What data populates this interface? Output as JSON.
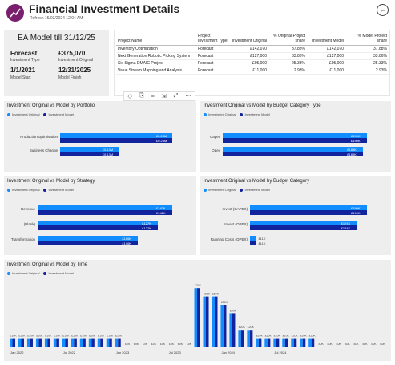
{
  "header": {
    "title": "Financial Investment Details",
    "refresh": "Refresh 15/03/2024 12:04 AM"
  },
  "colors": {
    "original": "#118dff",
    "model": "#12239e",
    "panel": "#eeeeee",
    "brand": "#7a1f6d"
  },
  "kpi": {
    "title": "EA Model till 31/12/25",
    "forecast_value": "Forecast",
    "forecast_label": "Investment Type",
    "original_value": "£375,070",
    "original_label": "Investment Original",
    "start_value": "1/1/2021",
    "start_label": "Model Start",
    "finish_value": "12/31/2025",
    "finish_label": "Model Finish"
  },
  "table": {
    "headers": [
      "Project Name",
      "Project Investment Type",
      "Investment Original",
      "% Original Project share",
      "Investment Model",
      "% Model Project share"
    ],
    "rows": [
      [
        "Inventory Optimization",
        "Forecast",
        "£142,070",
        "37.88%",
        "£142,070",
        "37.88%"
      ],
      [
        "Next Generation Robotic Picking System",
        "Forecast",
        "£127,000",
        "33.86%",
        "£127,000",
        "33.86%"
      ],
      [
        "Six Sigma DMAIC Project",
        "Forecast",
        "£95,000",
        "25.33%",
        "£95,000",
        "25.33%"
      ],
      [
        "Value Stream Mapping and Analysis",
        "Forecast",
        "£11,000",
        "2.93%",
        "£11,000",
        "2.93%"
      ]
    ],
    "toolbar": [
      "◇",
      "⎘",
      "≡",
      "⇲",
      "⤢",
      "⋯"
    ]
  },
  "legend": {
    "original": "Investment Original",
    "model": "Investment Model"
  },
  "charts": {
    "portfolio": {
      "title": "Investment Original vs Model by Portfolio",
      "categories": [
        "Production optimisation",
        "Business Change"
      ],
      "original": [
        0.25,
        0.13
      ],
      "model": [
        0.25,
        0.13
      ],
      "original_labels": [
        "£0.25M",
        "£0.13M"
      ],
      "model_labels": [
        "£0.25M",
        "£0.13M"
      ],
      "max": 0.25
    },
    "budget_type": {
      "title": "Investment Original vs Model by Budget Category Type",
      "categories": [
        "Capex",
        "Opex"
      ],
      "original": [
        190,
        185
      ],
      "model": [
        190,
        185
      ],
      "original_labels": [
        "£190K",
        "£185K"
      ],
      "model_labels": [
        "£190K",
        "£185K"
      ],
      "max": 190
    },
    "strategy": {
      "title": "Investment Original vs Model by Strategy",
      "categories": [
        "Revenue",
        "(Blank)",
        "Transformation"
      ],
      "original": [
        142,
        127,
        106
      ],
      "model": [
        142,
        127,
        106
      ],
      "original_labels": [
        "£142K",
        "£127K",
        "£106K"
      ],
      "model_labels": [
        "£142K",
        "£127K",
        "£106K"
      ],
      "max": 142
    },
    "budget_category": {
      "title": "Investment Original vs Model by Budget Category",
      "categories": [
        "Invest (CAPEX)",
        "Invest (OPEX)",
        "Running Costs (OPEX)"
      ],
      "original": [
        190,
        174,
        11
      ],
      "model": [
        190,
        174,
        11
      ],
      "original_labels": [
        "£190K",
        "£174K",
        "£11K"
      ],
      "model_labels": [
        "£190K",
        "£174K",
        "£11K"
      ],
      "max": 190
    }
  },
  "chart_data": {
    "type": "bar",
    "title": "Investment Original vs Model by Time",
    "x_ticks": [
      "Jan 2022",
      "Jul 2022",
      "Jan 2023",
      "Jul 2023",
      "Jan 2024",
      "Jul 2024"
    ],
    "series": [
      {
        "name": "Investment Original",
        "values": [
          10,
          10,
          10,
          10,
          10,
          10,
          10,
          10,
          10,
          10,
          10,
          10,
          10,
          0,
          0,
          0,
          0,
          0,
          0,
          0,
          0,
          70,
          60,
          60,
          50,
          40,
          20,
          20,
          10,
          10,
          10,
          10,
          10,
          10,
          10,
          0,
          0,
          0,
          0,
          0,
          0,
          0,
          0
        ]
      },
      {
        "name": "Investment Model",
        "values": [
          10,
          10,
          10,
          10,
          10,
          10,
          10,
          10,
          10,
          10,
          10,
          10,
          10,
          0,
          0,
          0,
          0,
          0,
          0,
          0,
          0,
          70,
          60,
          60,
          50,
          40,
          20,
          20,
          10,
          10,
          10,
          10,
          10,
          10,
          10,
          0,
          0,
          0,
          0,
          0,
          0,
          0,
          0
        ]
      }
    ],
    "labels": [
      "£10K",
      "£10K",
      "£10K",
      "£10K",
      "£10K",
      "£10K",
      "£10K",
      "£10K",
      "£10K",
      "£10K",
      "£10K",
      "£10K",
      "£10K",
      "£0K",
      "£0K",
      "£0K",
      "£0K",
      "£0K",
      "£0K",
      "£0K",
      "£0K",
      "£70K",
      "£60K",
      "£60K",
      "£50K",
      "£40K",
      "£20K",
      "£20K",
      "£10K",
      "£10K",
      "£10K",
      "£10K",
      "£10K",
      "£10K",
      "£10K",
      "£0K",
      "£0K",
      "£0K",
      "£0K",
      "£0K",
      "£0K",
      "£0K",
      "£0K"
    ],
    "ylim": [
      0,
      75
    ]
  }
}
